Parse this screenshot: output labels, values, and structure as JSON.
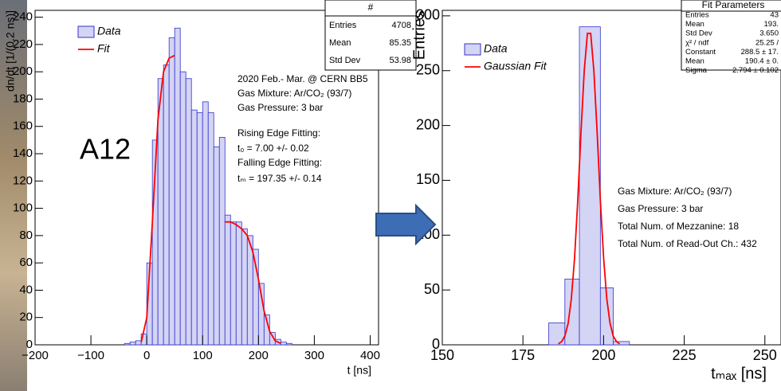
{
  "chart_data": [
    {
      "type": "histogram",
      "tag": "A12",
      "xlabel": "t [ns]",
      "ylabel": "dn/dt [1/(0.2 ns)]",
      "xlim": [
        -200,
        415
      ],
      "ylim": [
        0,
        245
      ],
      "xticks": [
        {
          "value": -200,
          "label": "−200"
        },
        {
          "value": -100,
          "label": "−100"
        },
        0,
        100,
        200,
        300,
        400
      ],
      "yticks": [
        0,
        20,
        40,
        60,
        80,
        100,
        120,
        140,
        160,
        180,
        200,
        220,
        240
      ],
      "bins": [
        -40,
        -30,
        -20,
        -10,
        0,
        10,
        20,
        30,
        40,
        50,
        60,
        70,
        80,
        90,
        100,
        110,
        120,
        130,
        140,
        150,
        160,
        170,
        180,
        190,
        200,
        210,
        220,
        230,
        240,
        250,
        260
      ],
      "series": [
        {
          "name": "Data",
          "color": "#3333cc",
          "fill": "#d4d4f4",
          "values": [
            1,
            2,
            3,
            8,
            60,
            150,
            195,
            205,
            225,
            232,
            200,
            195,
            172,
            170,
            178,
            170,
            145,
            152,
            95,
            90,
            90,
            85,
            80,
            70,
            45,
            22,
            9,
            4,
            2,
            1
          ]
        }
      ],
      "fit": {
        "name": "Fit",
        "color": "#ff0000",
        "x": [
          -10,
          0,
          10,
          20,
          30,
          40,
          50,
          null,
          140,
          150,
          160,
          170,
          180,
          190,
          200,
          210,
          220,
          230,
          240
        ],
        "values": [
          2,
          20,
          90,
          165,
          200,
          210,
          212,
          null,
          90,
          90,
          88,
          85,
          80,
          68,
          48,
          25,
          10,
          3,
          1
        ]
      },
      "stats": {
        "title": "#",
        "rows": [
          [
            "Entries",
            4708
          ],
          [
            "Mean",
            85.35
          ],
          [
            "Std Dev",
            53.98
          ]
        ]
      },
      "annotations": [
        "2020 Feb.- Mar. @ CERN BB5",
        "Gas Mixture: Ar/CO₂ (93/7)",
        "Gas Pressure: 3 bar",
        "Rising Edge Fitting:",
        "t₀ = 7.00 +/- 0.02",
        "Falling Edge Fitting:",
        "tₘ = 197.35 +/- 0.14"
      ]
    },
    {
      "type": "histogram",
      "xlabel": "tₘₐₓ [ns]",
      "ylabel": "Entries",
      "xlim": [
        150,
        255
      ],
      "ylim": [
        0,
        305
      ],
      "xticks": [
        150,
        175,
        200,
        225,
        250
      ],
      "yticks": [
        0,
        50,
        100,
        150,
        200,
        250,
        300
      ],
      "bins": [
        183,
        188,
        192.5,
        199,
        203,
        208
      ],
      "series": [
        {
          "name": "Data",
          "color": "#3333cc",
          "fill": "#d4d4f4",
          "values": [
            20,
            60,
            290,
            52,
            3
          ]
        }
      ],
      "fit": {
        "name": "Gaussian Fit",
        "color": "#ff0000",
        "x": [
          186,
          187,
          188,
          189,
          190,
          191,
          192,
          193,
          194,
          195,
          196,
          197,
          198,
          199,
          200,
          201,
          202,
          203,
          204,
          205
        ],
        "values": [
          0.9,
          2.9,
          8.0,
          19.5,
          41.9,
          79.4,
          132.1,
          193.6,
          249.9,
          284,
          284,
          249.9,
          193.6,
          132.1,
          79.4,
          41.9,
          19.5,
          8.0,
          2.9,
          0.9
        ]
      },
      "stats": {
        "title": "Fit Parameters",
        "rows": [
          [
            "Entries",
            "43"
          ],
          [
            "Mean",
            "193."
          ],
          [
            "Std Dev",
            "3.650"
          ],
          [
            "χ² / ndf",
            "25.25 /"
          ],
          [
            "Constant",
            "288.5 ± 17."
          ],
          [
            "Mean",
            "190.4 ± 0."
          ],
          [
            "Sigma",
            "2.794 ± 0.102"
          ]
        ]
      },
      "annotations": [
        "Gas Mixture: Ar/CO₂ (93/7)",
        "Gas Pressure: 3 bar",
        "Total Num. of Mezzanine: 18",
        "Total Num. of Read-Out Ch.: 432"
      ]
    }
  ]
}
